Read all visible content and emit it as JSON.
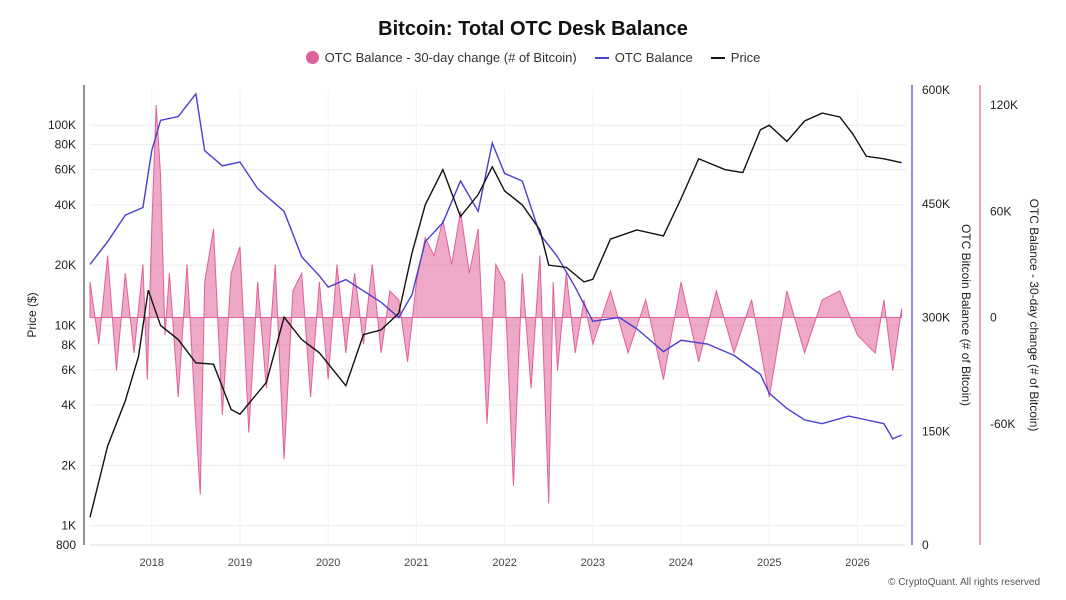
{
  "title": "Bitcoin: Total OTC Desk Balance",
  "legend": [
    {
      "label": "OTC Balance - 30-day change (# of Bitcoin)",
      "color": "#e0609a",
      "shape": "dot"
    },
    {
      "label": "OTC Balance",
      "color": "#4a3fcf",
      "shape": "line"
    },
    {
      "label": "Price",
      "color": "#111111",
      "shape": "line"
    }
  ],
  "footer": "© CryptoQuant. All rights reserved",
  "chart_data": {
    "type": "line",
    "title": "Bitcoin: Total OTC Desk Balance",
    "x_range": [
      "2017-04",
      "2026-07"
    ],
    "x_ticks": [
      "2018",
      "2019",
      "2020",
      "2021",
      "2022",
      "2023",
      "2024",
      "2025",
      "2026"
    ],
    "grid": true,
    "legend_position": "top-center",
    "axes": {
      "price": {
        "label": "Price ($)",
        "scale": "log",
        "range": [
          800,
          150000
        ],
        "ticks": [
          "100K",
          "80K",
          "60K",
          "40K",
          "20K",
          "10K",
          "8K",
          "6K",
          "4K",
          "2K",
          "1K",
          "800"
        ],
        "tick_values": [
          100000,
          80000,
          60000,
          40000,
          20000,
          10000,
          8000,
          6000,
          4000,
          2000,
          1000,
          800
        ]
      },
      "balance": {
        "label": "OTC Bitcoin Balance (# of Bitcoin)",
        "range": [
          0,
          600000
        ],
        "ticks": [
          "600K",
          "450K",
          "300K",
          "150K",
          "0"
        ],
        "tick_values": [
          600000,
          450000,
          300000,
          150000,
          0
        ]
      },
      "change": {
        "label": "OTC Balance - 30-day change (# of Bitcoin)",
        "range": [
          -120000,
          120000
        ],
        "ticks": [
          "120K",
          "60K",
          "0",
          "-60K"
        ],
        "tick_values": [
          120000,
          60000,
          0,
          -60000
        ]
      }
    },
    "series": [
      {
        "name": "Price",
        "axis": "price",
        "color": "#111111",
        "x": [
          2017.3,
          2017.5,
          2017.7,
          2017.85,
          2017.96,
          2018.1,
          2018.3,
          2018.5,
          2018.7,
          2018.9,
          2019.0,
          2019.3,
          2019.5,
          2019.7,
          2019.9,
          2020.2,
          2020.4,
          2020.6,
          2020.8,
          2020.95,
          2021.1,
          2021.3,
          2021.5,
          2021.7,
          2021.86,
          2022.0,
          2022.2,
          2022.4,
          2022.5,
          2022.7,
          2022.9,
          2023.0,
          2023.2,
          2023.5,
          2023.8,
          2024.0,
          2024.2,
          2024.5,
          2024.7,
          2024.9,
          2025.0,
          2025.2,
          2025.4,
          2025.6,
          2025.8,
          2025.95,
          2026.1,
          2026.3,
          2026.5
        ],
        "values": [
          1100,
          2500,
          4200,
          7000,
          15000,
          10000,
          8500,
          6500,
          6400,
          3800,
          3600,
          5200,
          11000,
          8500,
          7300,
          5000,
          9000,
          9500,
          11500,
          23000,
          40000,
          60000,
          35000,
          45000,
          62000,
          47000,
          40000,
          30000,
          20000,
          19500,
          16500,
          17000,
          27000,
          30000,
          28000,
          43000,
          68000,
          60000,
          58000,
          95000,
          100000,
          83000,
          105000,
          115000,
          110000,
          90000,
          70000,
          68000,
          65000
        ]
      },
      {
        "name": "OTC Balance",
        "axis": "balance",
        "color": "#4a3fcf",
        "x": [
          2017.3,
          2017.5,
          2017.7,
          2017.9,
          2018.0,
          2018.1,
          2018.3,
          2018.5,
          2018.6,
          2018.8,
          2019.0,
          2019.2,
          2019.5,
          2019.7,
          2019.9,
          2020.0,
          2020.2,
          2020.4,
          2020.6,
          2020.8,
          2020.95,
          2021.1,
          2021.3,
          2021.5,
          2021.7,
          2021.86,
          2022.0,
          2022.2,
          2022.4,
          2022.6,
          2022.8,
          2023.0,
          2023.3,
          2023.5,
          2023.8,
          2024.0,
          2024.3,
          2024.6,
          2024.9,
          2025.0,
          2025.2,
          2025.4,
          2025.6,
          2025.9,
          2026.1,
          2026.3,
          2026.4,
          2026.5
        ],
        "values": [
          370000,
          400000,
          435000,
          445000,
          520000,
          560000,
          565000,
          595000,
          520000,
          500000,
          505000,
          470000,
          440000,
          380000,
          355000,
          340000,
          350000,
          335000,
          320000,
          300000,
          330000,
          400000,
          425000,
          480000,
          440000,
          530000,
          490000,
          480000,
          410000,
          380000,
          340000,
          295000,
          300000,
          285000,
          255000,
          270000,
          265000,
          250000,
          225000,
          200000,
          180000,
          165000,
          160000,
          170000,
          165000,
          160000,
          140000,
          145000
        ]
      },
      {
        "name": "OTC Balance - 30-day change (# of Bitcoin)",
        "axis": "change",
        "color": "#e0609a",
        "type": "area",
        "x": [
          2017.3,
          2017.4,
          2017.5,
          2017.6,
          2017.7,
          2017.8,
          2017.9,
          2017.95,
          2018.0,
          2018.05,
          2018.1,
          2018.15,
          2018.2,
          2018.3,
          2018.4,
          2018.5,
          2018.55,
          2018.6,
          2018.7,
          2018.8,
          2018.9,
          2019.0,
          2019.1,
          2019.2,
          2019.3,
          2019.4,
          2019.5,
          2019.6,
          2019.7,
          2019.8,
          2019.9,
          2020.0,
          2020.1,
          2020.2,
          2020.3,
          2020.4,
          2020.5,
          2020.6,
          2020.7,
          2020.8,
          2020.9,
          2021.0,
          2021.1,
          2021.2,
          2021.3,
          2021.4,
          2021.5,
          2021.6,
          2021.7,
          2021.8,
          2021.9,
          2022.0,
          2022.1,
          2022.2,
          2022.3,
          2022.4,
          2022.5,
          2022.55,
          2022.6,
          2022.7,
          2022.8,
          2022.9,
          2023.0,
          2023.2,
          2023.4,
          2023.6,
          2023.8,
          2024.0,
          2024.2,
          2024.4,
          2024.6,
          2024.8,
          2025.0,
          2025.2,
          2025.4,
          2025.6,
          2025.8,
          2026.0,
          2026.2,
          2026.3,
          2026.4,
          2026.5
        ],
        "values": [
          20000,
          -15000,
          35000,
          -30000,
          25000,
          -20000,
          30000,
          -35000,
          50000,
          120000,
          80000,
          -10000,
          25000,
          -45000,
          30000,
          -60000,
          -100000,
          20000,
          50000,
          -55000,
          25000,
          40000,
          -65000,
          20000,
          -40000,
          30000,
          -80000,
          15000,
          25000,
          -45000,
          20000,
          -35000,
          30000,
          -20000,
          25000,
          -15000,
          30000,
          -20000,
          15000,
          10000,
          -25000,
          20000,
          45000,
          35000,
          55000,
          30000,
          60000,
          25000,
          50000,
          -60000,
          30000,
          20000,
          -95000,
          25000,
          -40000,
          35000,
          -105000,
          20000,
          -30000,
          25000,
          -20000,
          10000,
          -15000,
          15000,
          -20000,
          10000,
          -35000,
          20000,
          -25000,
          15000,
          -20000,
          10000,
          -45000,
          15000,
          -20000,
          10000,
          15000,
          -10000,
          -20000,
          10000,
          -30000,
          5000
        ]
      }
    ]
  }
}
